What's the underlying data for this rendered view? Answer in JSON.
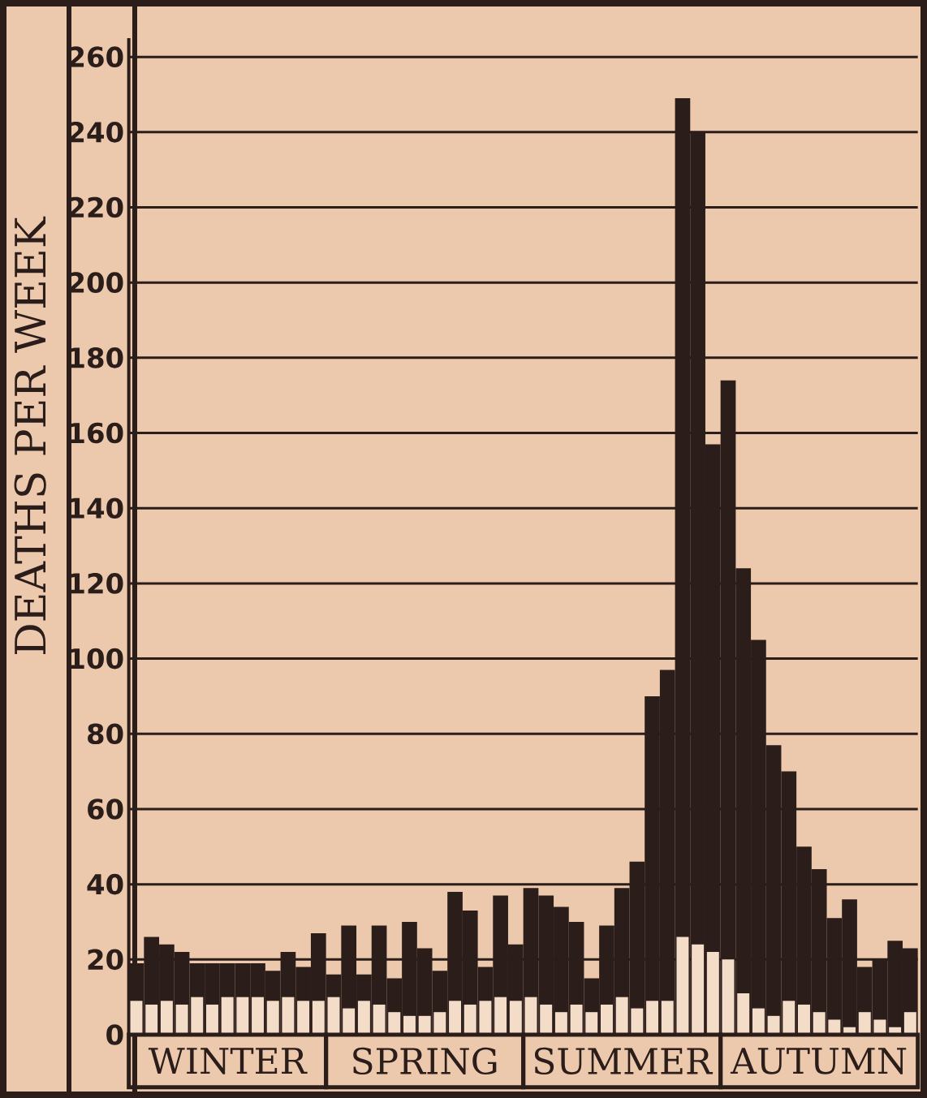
{
  "chart_data": {
    "type": "bar",
    "ylabel": "DEATHS PER WEEK",
    "categories": [
      null,
      null,
      null,
      null,
      null,
      null,
      null,
      null,
      null,
      null,
      null,
      null,
      null,
      null,
      null,
      null,
      null,
      null,
      null,
      null,
      null,
      null,
      null,
      null,
      null,
      null,
      null,
      null,
      null,
      null,
      null,
      null,
      null,
      null,
      null,
      null,
      null,
      null,
      null,
      null,
      null,
      null,
      null,
      null,
      null,
      null,
      null,
      null,
      null,
      null,
      null,
      null
    ],
    "series": [
      {
        "color": "#2b1d1a",
        "values": [
          19,
          26,
          24,
          22,
          19,
          19,
          19,
          19,
          19,
          17,
          22,
          18,
          27,
          16,
          29,
          16,
          29,
          15,
          30,
          23,
          17,
          38,
          33,
          18,
          37,
          24,
          39,
          37,
          34,
          30,
          15,
          29,
          39,
          46,
          90,
          97,
          249,
          240,
          157,
          174,
          124,
          105,
          77,
          70,
          50,
          44,
          31,
          36,
          18,
          20,
          25,
          23
        ]
      },
      {
        "color": "#f3dcc8",
        "values": [
          9,
          8,
          9,
          8,
          10,
          8,
          10,
          10,
          10,
          9,
          10,
          9,
          9,
          10,
          7,
          9,
          8,
          6,
          5,
          5,
          6,
          9,
          8,
          9,
          10,
          9,
          10,
          8,
          6,
          8,
          6,
          8,
          10,
          7,
          9,
          9,
          26,
          24,
          22,
          20,
          11,
          7,
          5,
          9,
          8,
          6,
          4,
          2,
          6,
          4,
          2,
          6
        ]
      }
    ],
    "ylim": [
      0,
      265
    ],
    "yticks": [
      0,
      20,
      40,
      60,
      80,
      100,
      120,
      140,
      160,
      180,
      200,
      220,
      240,
      260
    ],
    "grid": "y",
    "legend": false,
    "annotations": [
      "WINTER",
      "SPRING",
      "SUMMER",
      "AUTUMN"
    ]
  }
}
